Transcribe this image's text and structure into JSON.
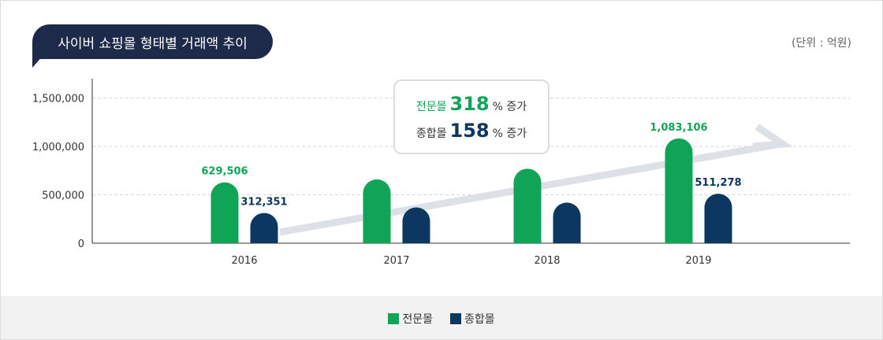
{
  "title": "사이버 쇼핑몰 형태별 거래액 추이",
  "unit": "(단위 : 억원)",
  "colors": {
    "specialty": "#10a456",
    "general": "#0b3761",
    "trend": "#dde1e7",
    "grid": "#d9d9d9"
  },
  "callout": {
    "line1": {
      "label": "전문몰",
      "value": "318",
      "suffix": "% 증가"
    },
    "line2": {
      "label": "종합몰",
      "value": "158",
      "suffix": "% 증가"
    }
  },
  "chart_data": {
    "type": "bar",
    "categories": [
      "2016",
      "2017",
      "2018",
      "2019"
    ],
    "series": [
      {
        "name": "전문몰",
        "values": [
          629506,
          660000,
          770000,
          1083106
        ],
        "labels": [
          "629,506",
          "",
          "",
          "1,083,106"
        ]
      },
      {
        "name": "종합몰",
        "values": [
          312351,
          370000,
          420000,
          511278
        ],
        "labels": [
          "312,351",
          "",
          "",
          "511,278"
        ]
      }
    ],
    "yticks": [
      0,
      500000,
      1000000,
      1500000
    ],
    "ytick_labels": [
      "0",
      "500,000",
      "1,000,000",
      "1,500,000"
    ],
    "ylim": [
      0,
      1700000
    ],
    "grid": true,
    "legend": "bottom"
  }
}
